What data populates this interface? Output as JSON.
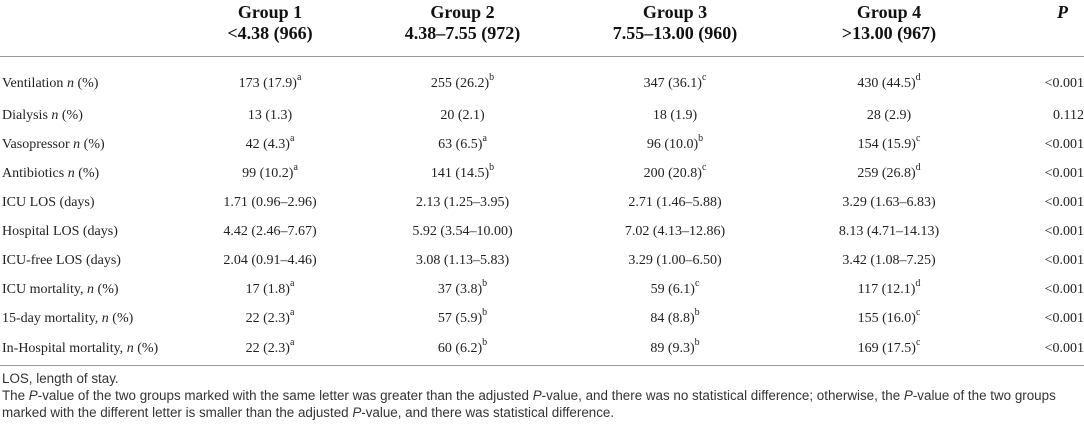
{
  "header": {
    "groups": [
      {
        "name": "Group 1",
        "range": "<4.38 (966)"
      },
      {
        "name": "Group 2",
        "range": "4.38–7.55 (972)"
      },
      {
        "name": "Group 3",
        "range": "7.55–13.00 (960)"
      },
      {
        "name": "Group 4",
        "range": ">13.00 (967)"
      }
    ],
    "p_label": "P"
  },
  "rows": [
    {
      "label": "Ventilation ",
      "n": "n",
      "pct": " (%)",
      "cells": [
        {
          "v": "173 (17.9)",
          "s": "a"
        },
        {
          "v": "255 (26.2)",
          "s": "b"
        },
        {
          "v": "347 (36.1)",
          "s": "c"
        },
        {
          "v": "430 (44.5)",
          "s": "d"
        }
      ],
      "p": "<0.001"
    },
    {
      "label": "Dialysis ",
      "n": "n",
      "pct": " (%)",
      "cells": [
        {
          "v": "13 (1.3)",
          "s": ""
        },
        {
          "v": "20 (2.1)",
          "s": ""
        },
        {
          "v": "18 (1.9)",
          "s": ""
        },
        {
          "v": "28 (2.9)",
          "s": ""
        }
      ],
      "p": "0.112"
    },
    {
      "label": "Vasopressor ",
      "n": "n",
      "pct": " (%)",
      "cells": [
        {
          "v": "42 (4.3)",
          "s": "a"
        },
        {
          "v": "63 (6.5)",
          "s": "a"
        },
        {
          "v": "96 (10.0)",
          "s": "b"
        },
        {
          "v": "154 (15.9)",
          "s": "c"
        }
      ],
      "p": "<0.001"
    },
    {
      "label": "Antibiotics ",
      "n": "n",
      "pct": " (%)",
      "cells": [
        {
          "v": "99 (10.2)",
          "s": "a"
        },
        {
          "v": "141 (14.5)",
          "s": "b"
        },
        {
          "v": "200 (20.8)",
          "s": "c"
        },
        {
          "v": "259 (26.8)",
          "s": "d"
        }
      ],
      "p": "<0.001"
    },
    {
      "label": "ICU LOS (days)",
      "n": "",
      "pct": "",
      "cells": [
        {
          "v": "1.71 (0.96–2.96)",
          "s": ""
        },
        {
          "v": "2.13 (1.25–3.95)",
          "s": ""
        },
        {
          "v": "2.71 (1.46–5.88)",
          "s": ""
        },
        {
          "v": "3.29 (1.63–6.83)",
          "s": ""
        }
      ],
      "p": "<0.001"
    },
    {
      "label": "Hospital LOS (days)",
      "n": "",
      "pct": "",
      "cells": [
        {
          "v": "4.42 (2.46–7.67)",
          "s": ""
        },
        {
          "v": "5.92 (3.54–10.00)",
          "s": ""
        },
        {
          "v": "7.02 (4.13–12.86)",
          "s": ""
        },
        {
          "v": "8.13 (4.71–14.13)",
          "s": ""
        }
      ],
      "p": "<0.001"
    },
    {
      "label": "ICU-free LOS (days)",
      "n": "",
      "pct": "",
      "cells": [
        {
          "v": "2.04 (0.91–4.46)",
          "s": ""
        },
        {
          "v": "3.08 (1.13–5.83)",
          "s": ""
        },
        {
          "v": "3.29 (1.00–6.50)",
          "s": ""
        },
        {
          "v": "3.42 (1.08–7.25)",
          "s": ""
        }
      ],
      "p": "<0.001"
    },
    {
      "label": "ICU mortality, ",
      "n": "n",
      "pct": " (%)",
      "cells": [
        {
          "v": "17 (1.8)",
          "s": "a"
        },
        {
          "v": "37 (3.8)",
          "s": "b"
        },
        {
          "v": "59 (6.1)",
          "s": "c"
        },
        {
          "v": "117 (12.1)",
          "s": "d"
        }
      ],
      "p": "<0.001"
    },
    {
      "label": "15-day mortality, ",
      "n": "n",
      "pct": " (%)",
      "cells": [
        {
          "v": "22 (2.3)",
          "s": "a"
        },
        {
          "v": "57 (5.9)",
          "s": "b"
        },
        {
          "v": "84 (8.8)",
          "s": "b"
        },
        {
          "v": "155 (16.0)",
          "s": "c"
        }
      ],
      "p": "<0.001"
    },
    {
      "label": "In-Hospital mortality, ",
      "n": "n",
      "pct": " (%)",
      "cells": [
        {
          "v": "22 (2.3)",
          "s": "a"
        },
        {
          "v": "60 (6.2)",
          "s": "b"
        },
        {
          "v": "89 (9.3)",
          "s": "b"
        },
        {
          "v": "169 (17.5)",
          "s": "c"
        }
      ],
      "p": "<0.001"
    }
  ],
  "footnotes": {
    "abbrev": "LOS, length of stay.",
    "note": {
      "t1": "The ",
      "p1": "P",
      "t2": "-value of the two groups marked with the same letter was greater than the adjusted ",
      "p2": "P",
      "t3": "-value, and there was no statistical difference; otherwise, the ",
      "p3": "P",
      "t4": "-value of the two groups marked with the different letter is smaller than the adjusted ",
      "p4": "P",
      "t5": "-value, and there was statistical difference."
    }
  }
}
